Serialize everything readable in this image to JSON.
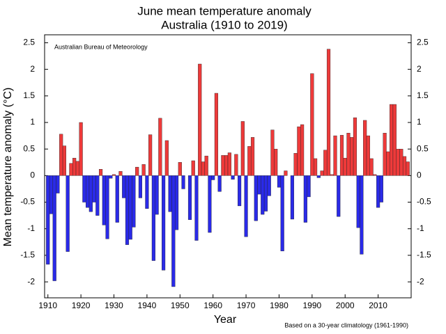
{
  "chart_data": {
    "type": "bar",
    "title": "June mean temperature anomaly",
    "subtitle": "Australia (1910 to 2019)",
    "x_label": "Year",
    "y_label": "Mean temperature anomaly (°C)",
    "annotation": "Australian Bureau of Meteorology",
    "note": "Based on a 30-year climatology (1961-1990)",
    "positive_color": "#ee3a3a",
    "negative_color": "#2a2ae8",
    "x": [
      1910,
      1911,
      1912,
      1913,
      1914,
      1915,
      1916,
      1917,
      1918,
      1919,
      1920,
      1921,
      1922,
      1923,
      1924,
      1925,
      1926,
      1927,
      1928,
      1929,
      1930,
      1931,
      1932,
      1933,
      1934,
      1935,
      1936,
      1937,
      1938,
      1939,
      1940,
      1941,
      1942,
      1943,
      1944,
      1945,
      1946,
      1947,
      1948,
      1949,
      1950,
      1951,
      1952,
      1953,
      1954,
      1955,
      1956,
      1957,
      1958,
      1959,
      1960,
      1961,
      1962,
      1963,
      1964,
      1965,
      1966,
      1967,
      1968,
      1969,
      1970,
      1971,
      1972,
      1973,
      1974,
      1975,
      1976,
      1977,
      1978,
      1979,
      1980,
      1981,
      1982,
      1983,
      1984,
      1985,
      1986,
      1987,
      1988,
      1989,
      1990,
      1991,
      1992,
      1993,
      1994,
      1995,
      1996,
      1997,
      1998,
      1999,
      2000,
      2001,
      2002,
      2003,
      2004,
      2005,
      2006,
      2007,
      2008,
      2009,
      2010,
      2011,
      2012,
      2013,
      2014,
      2015,
      2016,
      2017,
      2018,
      2019
    ],
    "values": [
      -1.67,
      -0.72,
      -1.98,
      -0.33,
      0.78,
      0.56,
      -1.43,
      0.23,
      0.33,
      0.27,
      1.0,
      -0.5,
      -0.6,
      -0.68,
      -0.5,
      -0.75,
      0.12,
      -0.93,
      -1.19,
      -0.05,
      0.02,
      -0.88,
      0.08,
      -0.42,
      -1.3,
      -1.2,
      -0.97,
      0.16,
      -0.42,
      0.21,
      -0.62,
      0.77,
      -1.6,
      -0.73,
      1.08,
      -1.78,
      0.66,
      -0.68,
      -2.09,
      -1.02,
      0.25,
      -0.25,
      0.0,
      -0.83,
      0.28,
      -1.22,
      2.1,
      0.26,
      0.37,
      -1.07,
      -0.08,
      1.55,
      -0.3,
      0.38,
      0.38,
      0.43,
      -0.07,
      0.4,
      -0.57,
      1.02,
      -1.15,
      0.55,
      0.72,
      -0.85,
      -0.35,
      -0.73,
      -0.67,
      -0.38,
      0.86,
      0.5,
      -0.22,
      -1.42,
      0.09,
      0.0,
      -0.82,
      0.42,
      0.92,
      0.96,
      -0.88,
      -0.4,
      1.92,
      0.32,
      -0.04,
      0.09,
      0.48,
      2.38,
      0.02,
      0.75,
      -0.77,
      0.76,
      0.33,
      0.8,
      0.72,
      1.09,
      -0.98,
      -1.48,
      1.04,
      0.75,
      0.32,
      0.02,
      -0.6,
      -0.5,
      0.8,
      0.45,
      1.34,
      1.34,
      0.5,
      0.5,
      0.36,
      0.26
    ],
    "xlim": [
      1909,
      2020
    ],
    "xticks": [
      1910,
      1920,
      1930,
      1940,
      1950,
      1960,
      1970,
      1980,
      1990,
      2000,
      2010
    ],
    "ylim": [
      -2.3,
      2.65
    ],
    "yticks": [
      -2,
      -1.5,
      -1,
      -0.5,
      0,
      0.5,
      1,
      1.5,
      2,
      2.5
    ]
  }
}
